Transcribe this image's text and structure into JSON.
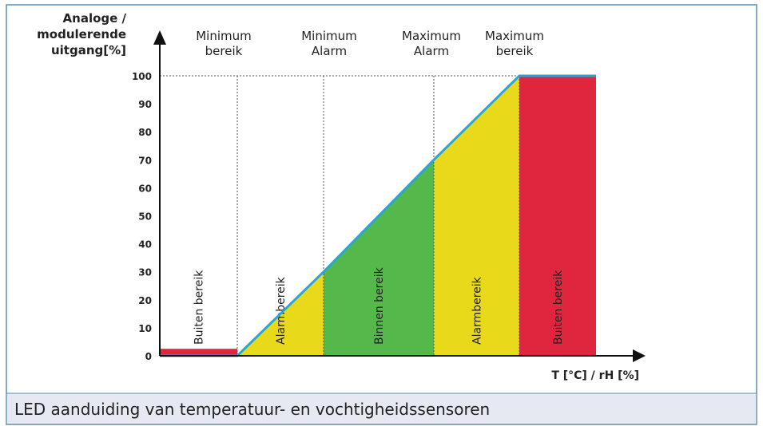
{
  "y_axis": {
    "label": [
      "Analoge /",
      "modulerende",
      "uitgang[%]"
    ],
    "lim": [
      0,
      100
    ],
    "ticks": [
      0,
      10,
      20,
      30,
      40,
      50,
      60,
      70,
      80,
      90,
      100
    ]
  },
  "x_axis": {
    "label": "T [°C] / rH [%]"
  },
  "headers": [
    [
      "Minimum",
      "bereik"
    ],
    [
      "Minimum",
      "Alarm"
    ],
    [
      "Maximum",
      "Alarm"
    ],
    [
      "Maximum",
      "bereik"
    ]
  ],
  "zones": [
    {
      "label": "Buiten bereik",
      "color": "#e0263f"
    },
    {
      "label": "Alarmbereik",
      "color": "#e8da1b"
    },
    {
      "label": "Binnen bereik",
      "color": "#55b84a"
    },
    {
      "label": "Alarmbereik",
      "color": "#e8da1b"
    },
    {
      "label": "Buiten bereik",
      "color": "#e0263f"
    }
  ],
  "curve": [
    0,
    0,
    30,
    70,
    100,
    100
  ],
  "low_level": 2.5,
  "line_color": "#2aa6d6",
  "caption": "LED aanduiding van temperatuur- en vochtigheidssensoren"
}
